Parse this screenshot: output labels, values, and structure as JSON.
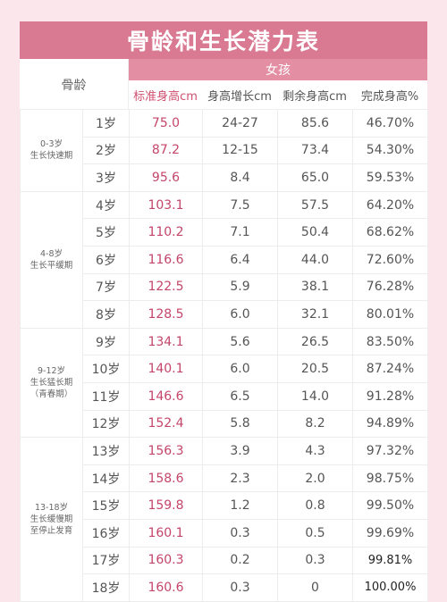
{
  "title": "骨龄和生长潜力表",
  "header": {
    "age_col": "骨龄",
    "gender": "女孩",
    "columns": [
      "标准身高cm",
      "身高增长cm",
      "剩余身高cm",
      "完成身高%"
    ]
  },
  "groups": [
    {
      "lines": [
        "0-3岁",
        "生长快速期"
      ],
      "rows": [
        {
          "age": "1岁",
          "std": "75.0",
          "grow": "24-27",
          "remain": "85.6",
          "pct": "46.70%"
        },
        {
          "age": "2岁",
          "std": "87.2",
          "grow": "12-15",
          "remain": "73.4",
          "pct": "54.30%"
        },
        {
          "age": "3岁",
          "std": "95.6",
          "grow": "8.4",
          "remain": "65.0",
          "pct": "59.53%"
        }
      ]
    },
    {
      "lines": [
        "4-8岁",
        "生长平缓期"
      ],
      "rows": [
        {
          "age": "4岁",
          "std": "103.1",
          "grow": "7.5",
          "remain": "57.5",
          "pct": "64.20%"
        },
        {
          "age": "5岁",
          "std": "110.2",
          "grow": "7.1",
          "remain": "50.4",
          "pct": "68.62%"
        },
        {
          "age": "6岁",
          "std": "116.6",
          "grow": "6.4",
          "remain": "44.0",
          "pct": "72.60%"
        },
        {
          "age": "7岁",
          "std": "122.5",
          "grow": "5.9",
          "remain": "38.1",
          "pct": "76.28%"
        },
        {
          "age": "8岁",
          "std": "128.5",
          "grow": "6.0",
          "remain": "32.1",
          "pct": "80.01%"
        }
      ]
    },
    {
      "lines": [
        "9-12岁",
        "生长猛长期",
        "（青春期）"
      ],
      "rows": [
        {
          "age": "9岁",
          "std": "134.1",
          "grow": "5.6",
          "remain": "26.5",
          "pct": "83.50%"
        },
        {
          "age": "10岁",
          "std": "140.1",
          "grow": "6.0",
          "remain": "20.5",
          "pct": "87.24%"
        },
        {
          "age": "11岁",
          "std": "146.6",
          "grow": "6.5",
          "remain": "14.0",
          "pct": "91.28%"
        },
        {
          "age": "12岁",
          "std": "152.4",
          "grow": "5.8",
          "remain": "8.2",
          "pct": "94.89%"
        }
      ]
    },
    {
      "lines": [
        "13-18岁",
        "生长缓慢期",
        "至停止发育"
      ],
      "rows": [
        {
          "age": "13岁",
          "std": "156.3",
          "grow": "3.9",
          "remain": "4.3",
          "pct": "97.32%"
        },
        {
          "age": "14岁",
          "std": "158.6",
          "grow": "2.3",
          "remain": "2.0",
          "pct": "98.75%"
        },
        {
          "age": "15岁",
          "std": "159.8",
          "grow": "1.2",
          "remain": "0.8",
          "pct": "99.50%"
        },
        {
          "age": "16岁",
          "std": "160.1",
          "grow": "0.3",
          "remain": "0.5",
          "pct": "99.69%"
        },
        {
          "age": "17岁",
          "std": "160.3",
          "grow": "0.2",
          "remain": "0.3",
          "pct": "99.81%"
        },
        {
          "age": "18岁",
          "std": "160.6",
          "grow": "0.3",
          "remain": "0",
          "pct": "100.00%"
        }
      ]
    }
  ]
}
